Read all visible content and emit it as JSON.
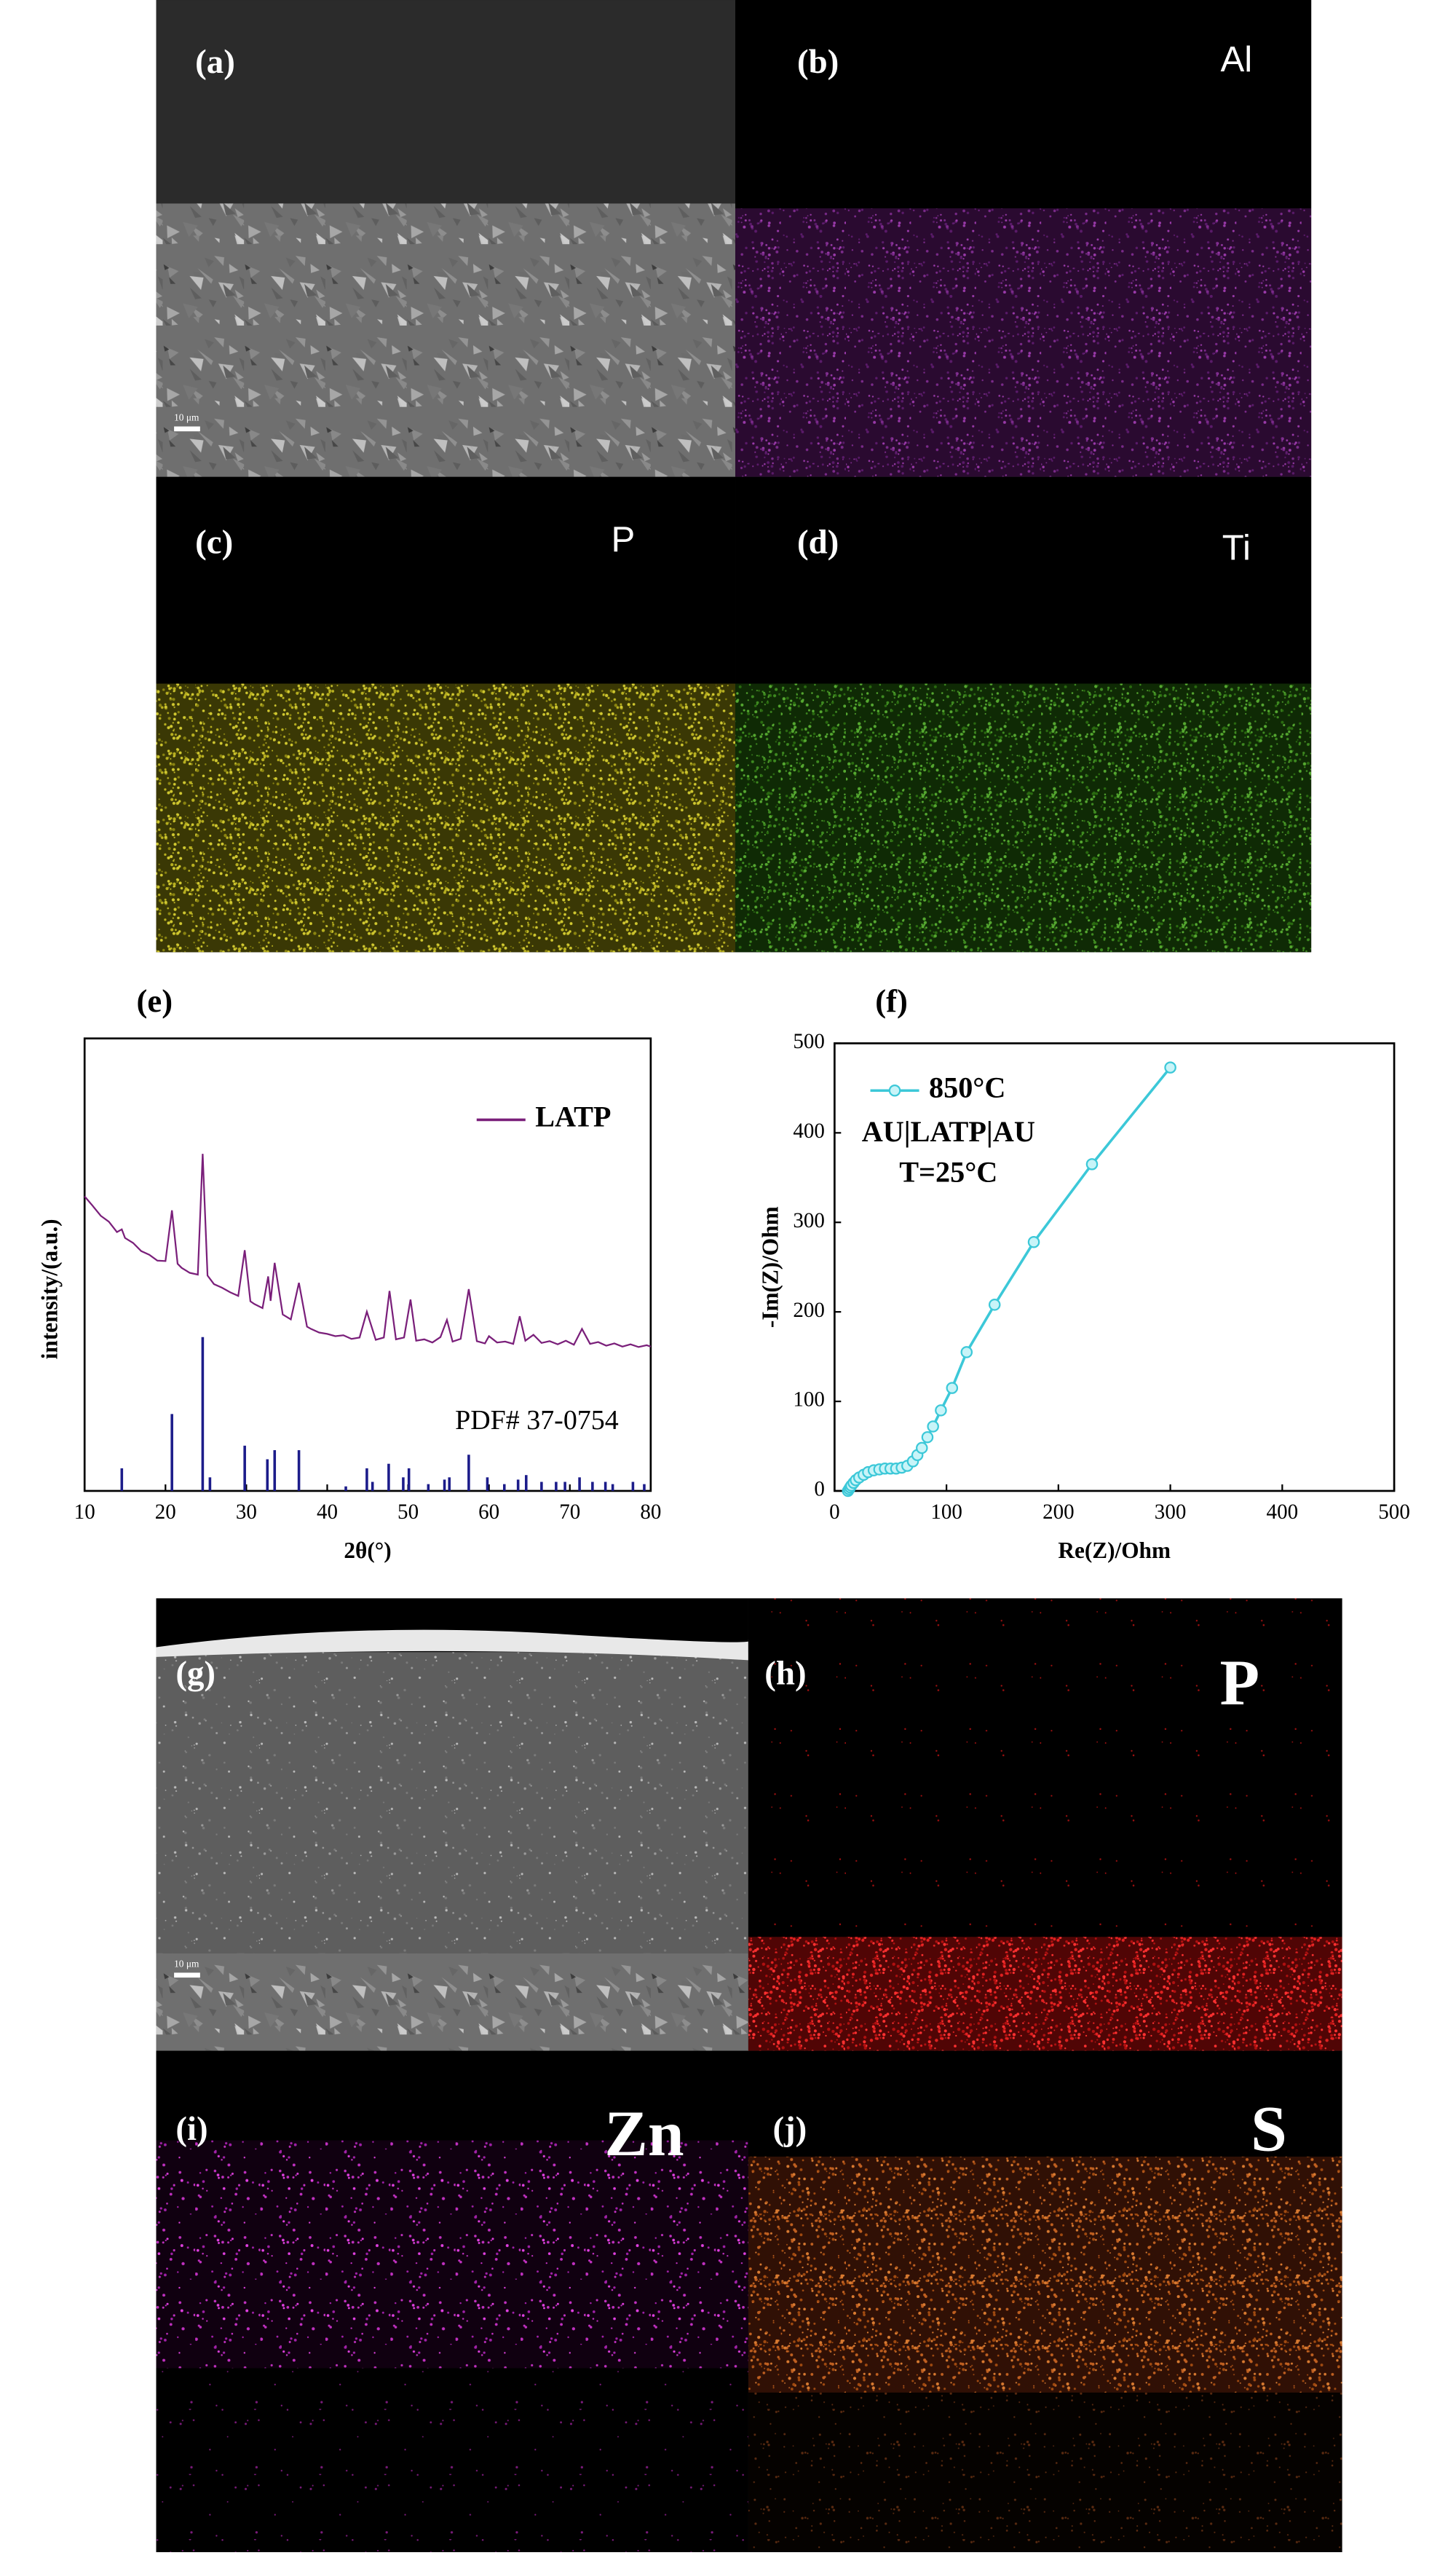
{
  "panels": [
    {
      "label": "(a)",
      "scale_bar": "10 μm"
    },
    {
      "label": "(b)",
      "element": "Al"
    },
    {
      "label": "(c)",
      "element": "P"
    },
    {
      "label": "(d)",
      "element": "Ti"
    },
    {
      "label": "(g)",
      "scale_bar": "10 μm"
    },
    {
      "label": "(h)",
      "element": "P"
    },
    {
      "label": "(i)",
      "element": "Zn"
    },
    {
      "label": "(j)",
      "element": "S"
    }
  ],
  "chart_data": [
    {
      "type": "line",
      "label": "(e)",
      "x_label": "2θ(°)",
      "y_label": "intensity/(a.u.)",
      "xlim": [
        10,
        80
      ],
      "xticks": [
        10,
        20,
        30,
        40,
        50,
        60,
        70,
        80
      ],
      "ylim": [
        0,
        100
      ],
      "legend": "upper right",
      "series": [
        {
          "name": "LATP",
          "color": "#7a1f7a",
          "x": [
            10,
            11,
            12,
            13,
            14,
            14.6,
            15,
            16,
            17,
            18,
            19,
            20,
            20.8,
            21.5,
            22,
            23,
            24,
            24.6,
            25.2,
            26,
            27,
            28,
            29,
            29.8,
            30.5,
            31,
            32,
            32.7,
            33,
            33.5,
            34.5,
            35.5,
            36.5,
            37.5,
            38,
            39,
            40,
            41,
            42,
            43,
            44,
            44.9,
            46,
            47,
            47.7,
            48.5,
            49.5,
            50.3,
            51,
            52,
            53,
            54,
            54.8,
            55.5,
            56.5,
            57.5,
            58.5,
            59.5,
            60,
            61,
            62,
            63,
            63.8,
            64.5,
            65.5,
            66.5,
            67.5,
            68.5,
            69.5,
            70.5,
            71.5,
            72.5,
            73.5,
            74.5,
            75.5,
            76.5,
            77.5,
            78.5,
            79.5,
            80
          ],
          "values": [
            65.1,
            63.0,
            60.8,
            59.5,
            57.2,
            57.8,
            55.9,
            54.8,
            53.0,
            52.2,
            50.9,
            50.8,
            62.0,
            50.2,
            49.3,
            48.2,
            47.8,
            74.5,
            47.6,
            45.7,
            44.9,
            43.9,
            43.1,
            53.2,
            41.9,
            41.3,
            40.4,
            47.4,
            42.0,
            50.4,
            39.0,
            37.9,
            46.0,
            36.3,
            35.8,
            35.0,
            34.7,
            34.2,
            34.4,
            33.6,
            33.9,
            39.6,
            33.4,
            33.9,
            44.2,
            33.5,
            33.9,
            42.3,
            33.2,
            33.5,
            32.8,
            34.0,
            37.8,
            33.0,
            33.6,
            44.6,
            33.1,
            32.6,
            34.2,
            32.8,
            33.0,
            32.5,
            38.6,
            33.2,
            34.5,
            32.7,
            33.1,
            32.4,
            33.2,
            32.3,
            35.8,
            32.5,
            32.9,
            32.1,
            32.6,
            31.9,
            32.4,
            31.8,
            32.2,
            31.9
          ]
        }
      ],
      "reference": {
        "name": "PDF# 37-0754",
        "color": "#1c1c8a",
        "x": [
          14.6,
          20.8,
          24.6,
          25.5,
          29.8,
          32.6,
          33.5,
          36.5,
          42.3,
          44.9,
          45.6,
          47.6,
          49.4,
          50.1,
          52.5,
          54.5,
          55.1,
          57.5,
          59.8,
          61.9,
          63.6,
          64.6,
          66.5,
          68.3,
          69.4,
          71.2,
          72.8,
          74.4,
          75.3,
          77.8,
          79.2
        ],
        "values": [
          5,
          17,
          34,
          3,
          10,
          7,
          9,
          9,
          1,
          5,
          2,
          6,
          3,
          5,
          1.5,
          2.5,
          3,
          8,
          3,
          1.5,
          2.5,
          3.5,
          2,
          2,
          2,
          3,
          2,
          2,
          1.5,
          2,
          1.5
        ]
      }
    },
    {
      "type": "line",
      "markers": true,
      "label": "(f)",
      "x_label": "Re(Z)/Ohm",
      "y_label": "-Im(Z)/Ohm",
      "xlim": [
        0,
        500
      ],
      "xticks": [
        0,
        100,
        200,
        300,
        400,
        500
      ],
      "ylim": [
        0,
        500
      ],
      "yticks": [
        0,
        100,
        200,
        300,
        400,
        500
      ],
      "legend": "upper left",
      "annotations": [
        "AU|LATP|AU",
        "T=25°C"
      ],
      "series": [
        {
          "name": "850°C",
          "color": "#3cc8d8",
          "x": [
            12,
            13,
            14,
            15,
            17,
            19,
            22,
            26,
            30,
            35,
            40,
            45,
            50,
            55,
            60,
            65,
            70,
            74,
            78,
            83,
            88,
            95,
            105,
            118,
            143,
            178,
            230,
            300
          ],
          "values": [
            0,
            2,
            4,
            6,
            9,
            12,
            15,
            18,
            21,
            23,
            24,
            25,
            25,
            25,
            26,
            28,
            33,
            40,
            48,
            60,
            72,
            90,
            115,
            155,
            208,
            278,
            365,
            473
          ]
        }
      ]
    }
  ]
}
